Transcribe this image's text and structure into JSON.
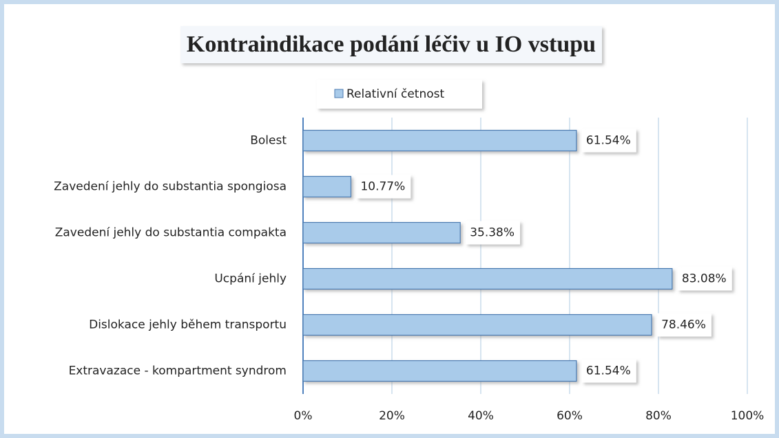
{
  "chart_data": {
    "type": "bar",
    "orientation": "horizontal",
    "title": "Kontraindikace podání léčiv u IO vstupu",
    "categories": [
      "Bolest",
      "Zavedení jehly do substantia spongiosa",
      "Zavedení jehly do substantia compakta",
      "Ucpání jehly",
      "Dislokace jehly během transportu",
      "Extravazace - kompartment syndrom"
    ],
    "series": [
      {
        "name": "Relativní četnost",
        "color": "#a9cbea",
        "values": [
          61.54,
          10.77,
          35.38,
          83.08,
          78.46,
          61.54
        ],
        "value_labels": [
          "61.54%",
          "10.77%",
          "35.38%",
          "83.08%",
          "78.46%",
          "61.54%"
        ]
      }
    ],
    "xlim": [
      0,
      100
    ],
    "xticks": [
      {
        "value": 0,
        "label": "0%"
      },
      {
        "value": 20,
        "label": "20%"
      },
      {
        "value": 40,
        "label": "40%"
      },
      {
        "value": 60,
        "label": "60%"
      },
      {
        "value": 80,
        "label": "80%"
      },
      {
        "value": 100,
        "label": "100%"
      }
    ],
    "grid": true,
    "legend": "top"
  }
}
